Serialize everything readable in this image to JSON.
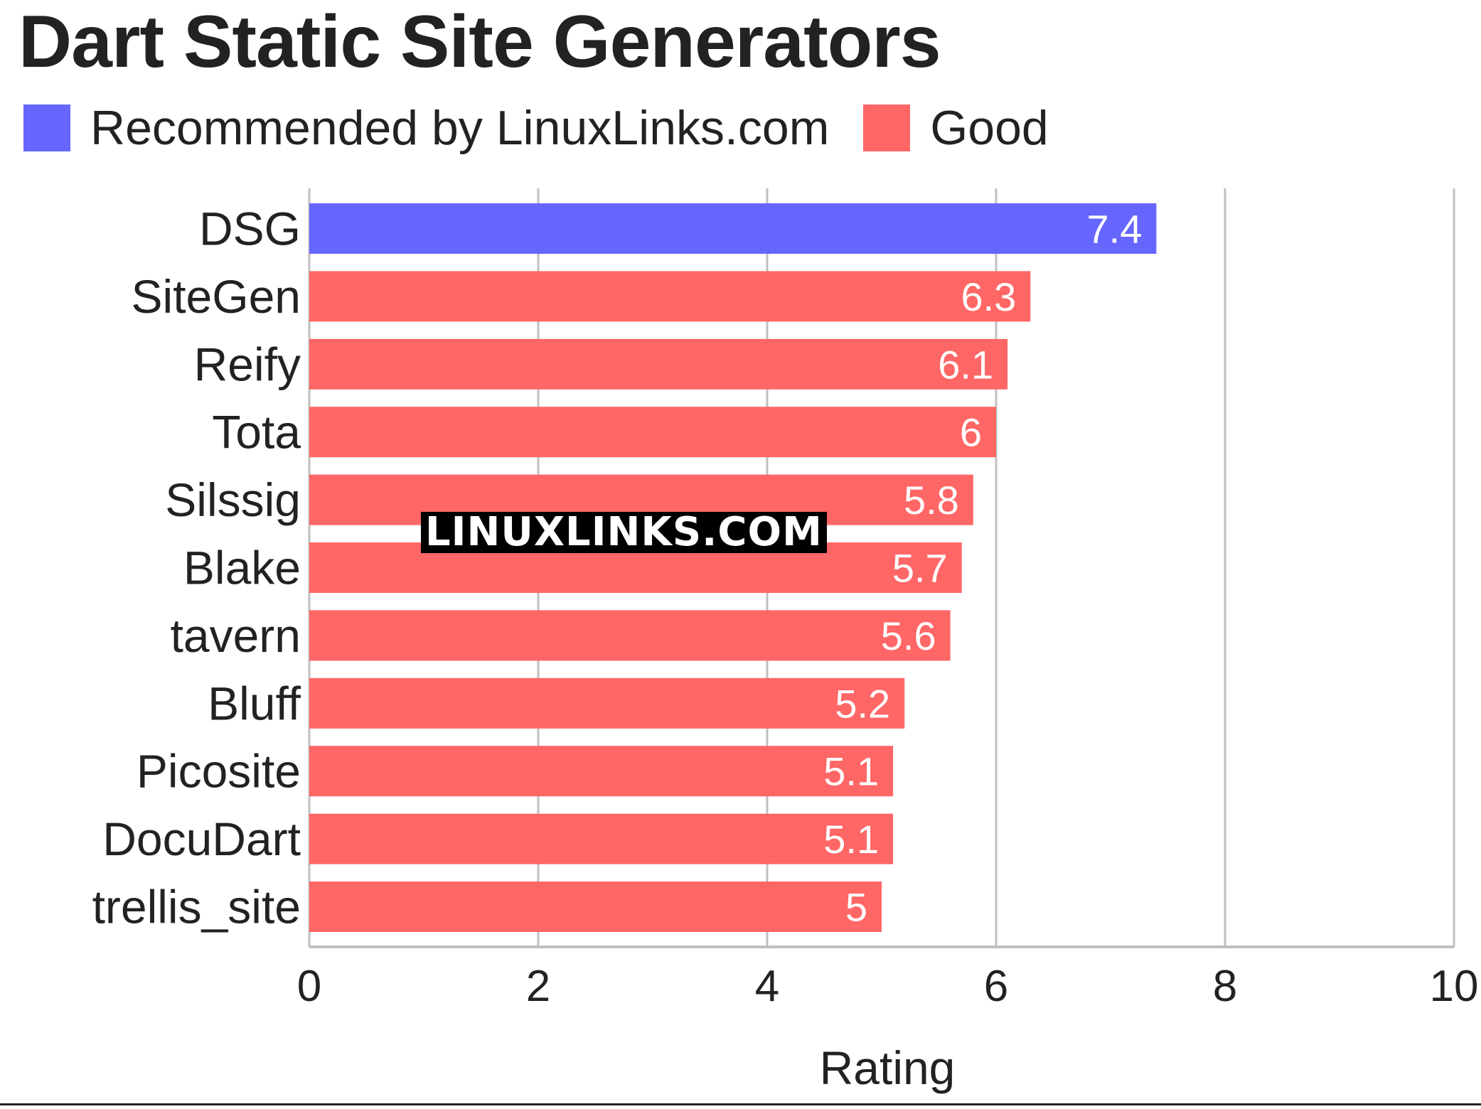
{
  "chart_data": {
    "type": "bar",
    "orientation": "horizontal",
    "title": "Dart Static Site Generators",
    "xlabel": "Rating",
    "ylabel": "",
    "xlim": [
      0,
      10
    ],
    "xticks": [
      "0",
      "2",
      "4",
      "6",
      "8",
      "10"
    ],
    "grid": true,
    "legend": {
      "placement": "top-left",
      "entries": [
        {
          "name": "Recommended by LinuxLinks.com",
          "color": "#6666ff"
        },
        {
          "name": "Good",
          "color": "#ff6666"
        }
      ]
    },
    "categories": [
      "DSG",
      "SiteGen",
      "Reify",
      "Tota",
      "Silssig",
      "Blake",
      "tavern",
      "Bluff",
      "Picosite",
      "DocuDart",
      "trellis_site"
    ],
    "values": [
      7.4,
      6.3,
      6.1,
      6,
      5.8,
      5.7,
      5.6,
      5.2,
      5.1,
      5.1,
      5
    ],
    "value_labels": [
      "7.4",
      "6.3",
      "6.1",
      "6",
      "5.8",
      "5.7",
      "5.6",
      "5.2",
      "5.1",
      "5.1",
      "5"
    ],
    "groups": [
      "Recommended by LinuxLinks.com",
      "Good",
      "Good",
      "Good",
      "Good",
      "Good",
      "Good",
      "Good",
      "Good",
      "Good",
      "Good"
    ]
  },
  "colors": {
    "recommended": "#6666ff",
    "good": "#ff6666",
    "grid": "#bfbfbf",
    "axis": "#bfbfbf",
    "text": "#222222"
  },
  "watermark": "LINUXLINKS.COM"
}
